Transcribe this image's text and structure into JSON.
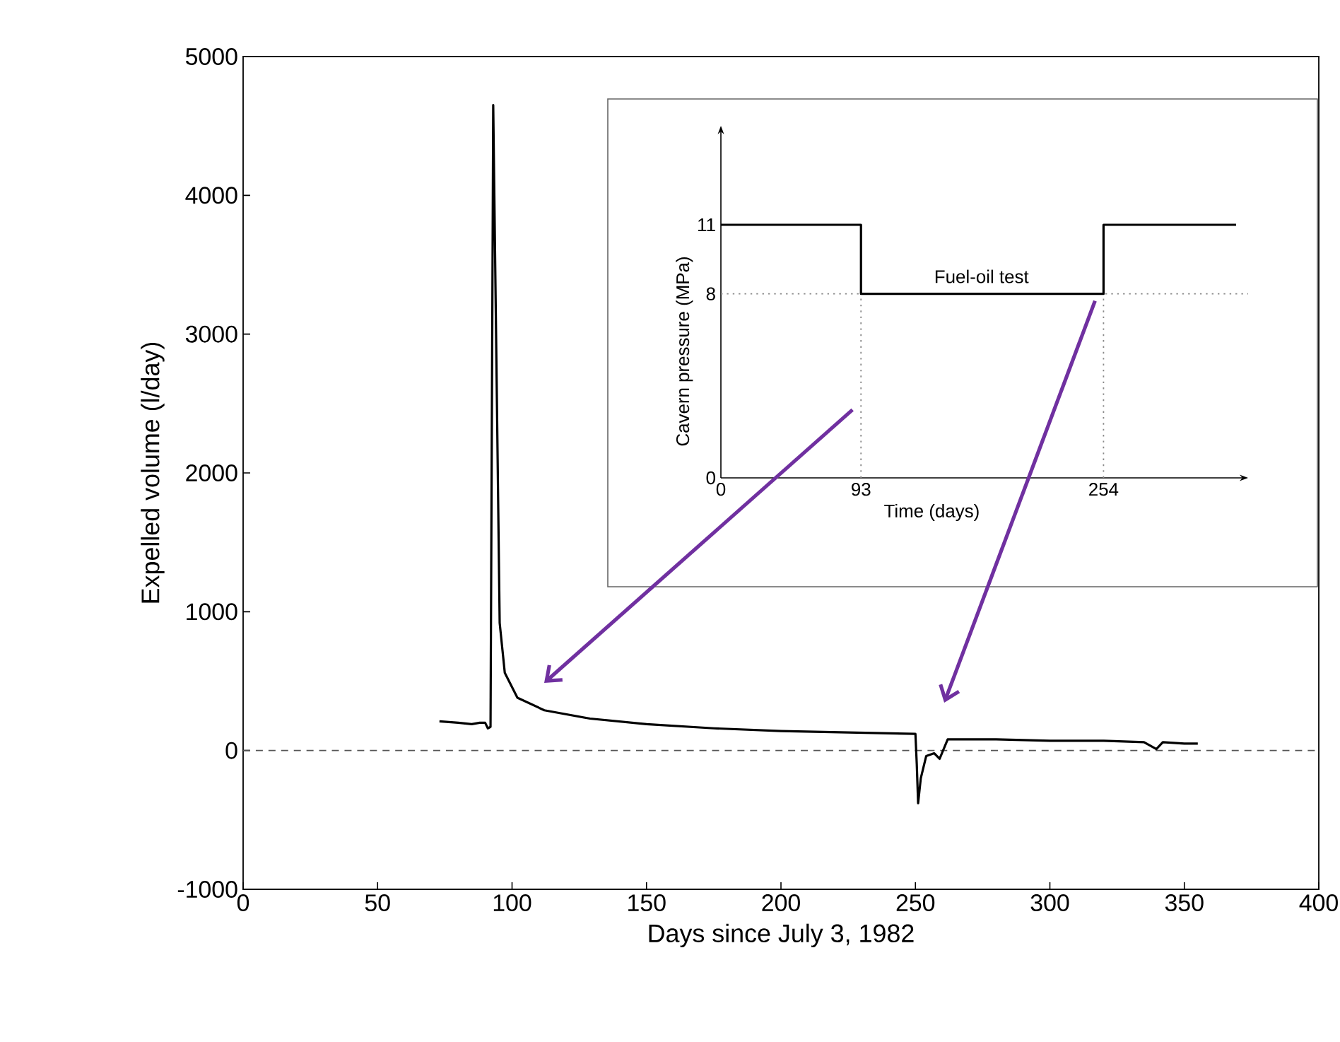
{
  "chart_data": [
    {
      "type": "line",
      "xlabel": "Days since July 3, 1982",
      "ylabel": "Expelled volume (l/day)",
      "x": [
        73,
        80,
        85,
        88,
        90,
        91,
        92,
        93,
        95.4,
        97.3,
        102,
        112,
        129,
        150,
        175,
        200,
        225,
        250,
        250.5,
        251,
        252,
        254,
        257,
        259,
        262,
        280,
        300,
        320,
        335,
        339.6,
        342,
        350,
        355
      ],
      "values": [
        210,
        200,
        190,
        200,
        200,
        160,
        170,
        4650,
        920,
        560,
        380,
        290,
        230,
        190,
        160,
        140,
        130,
        120,
        -100,
        -380,
        -200,
        -40,
        -20,
        -60,
        80,
        80,
        70,
        70,
        60,
        10,
        60,
        50,
        50
      ],
      "color": "#000000",
      "xlim": [
        0,
        400
      ],
      "ylim": [
        -1000,
        5000
      ],
      "xticks": [
        0,
        50,
        100,
        150,
        200,
        250,
        300,
        350,
        400
      ],
      "yticks": [
        -1000,
        0,
        1000,
        2000,
        3000,
        4000,
        5000
      ],
      "ref_lines": [
        {
          "axis": "y",
          "value": 0,
          "color": "#555555",
          "line_style": "dashed"
        }
      ]
    },
    {
      "type": "step",
      "xlabel": "Time (days)",
      "ylabel": "Cavern pressure (MPa)",
      "x": [
        0,
        93,
        254,
        342
      ],
      "values": [
        11,
        8,
        11,
        11
      ],
      "color": "#000000",
      "xlim": [
        0,
        350
      ],
      "ylim": [
        0,
        11
      ],
      "xticks": [
        0,
        93,
        254
      ],
      "yticks": [
        0,
        8,
        11
      ],
      "ref_lines": [
        {
          "axis": "y",
          "value": 8,
          "color": "#888888",
          "line_style": "dotted"
        },
        {
          "axis": "x",
          "value": 93,
          "color": "#888888",
          "line_style": "dotted"
        },
        {
          "axis": "x",
          "value": 254,
          "color": "#888888",
          "line_style": "dotted"
        }
      ],
      "annotations": [
        {
          "text": "Fuel-oil test",
          "x": 173,
          "y": 8
        }
      ]
    }
  ]
}
